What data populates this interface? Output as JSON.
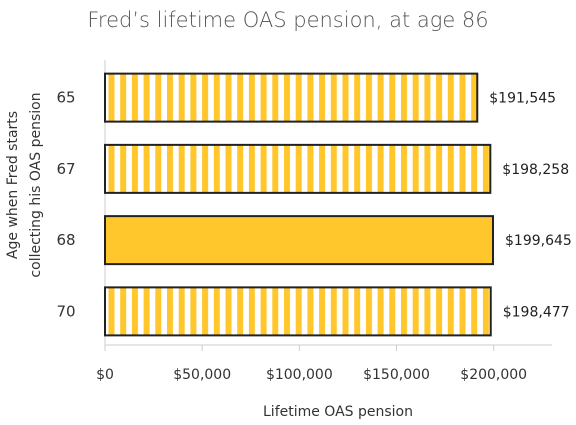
{
  "chart_data": {
    "type": "bar",
    "orientation": "horizontal",
    "title": "Fred’s lifetime OAS pension, at age 86",
    "xlabel": "Lifetime OAS pension",
    "ylabel_lines": [
      "Age when Fred starts",
      "collecting  his OAS pension"
    ],
    "categories": [
      "65",
      "67",
      "68",
      "70"
    ],
    "values": [
      191545,
      198258,
      199645,
      198477
    ],
    "data_labels": [
      "$191,545",
      "$198,258",
      "$199,645",
      "$198,477"
    ],
    "highlight_index": 2,
    "xlim": [
      0,
      230000
    ],
    "xticks": [
      0,
      50000,
      100000,
      150000,
      200000
    ],
    "xtick_labels": [
      "$0",
      "$50,000",
      "$100,000",
      "$150,000",
      "$200,000"
    ],
    "grid": false,
    "colors": {
      "bar_fill": "#FFC72C",
      "bar_stroke": "#222222",
      "stripe": "#FFC72C",
      "axis": "#cccccc"
    },
    "pattern": "vertical-stripes"
  }
}
